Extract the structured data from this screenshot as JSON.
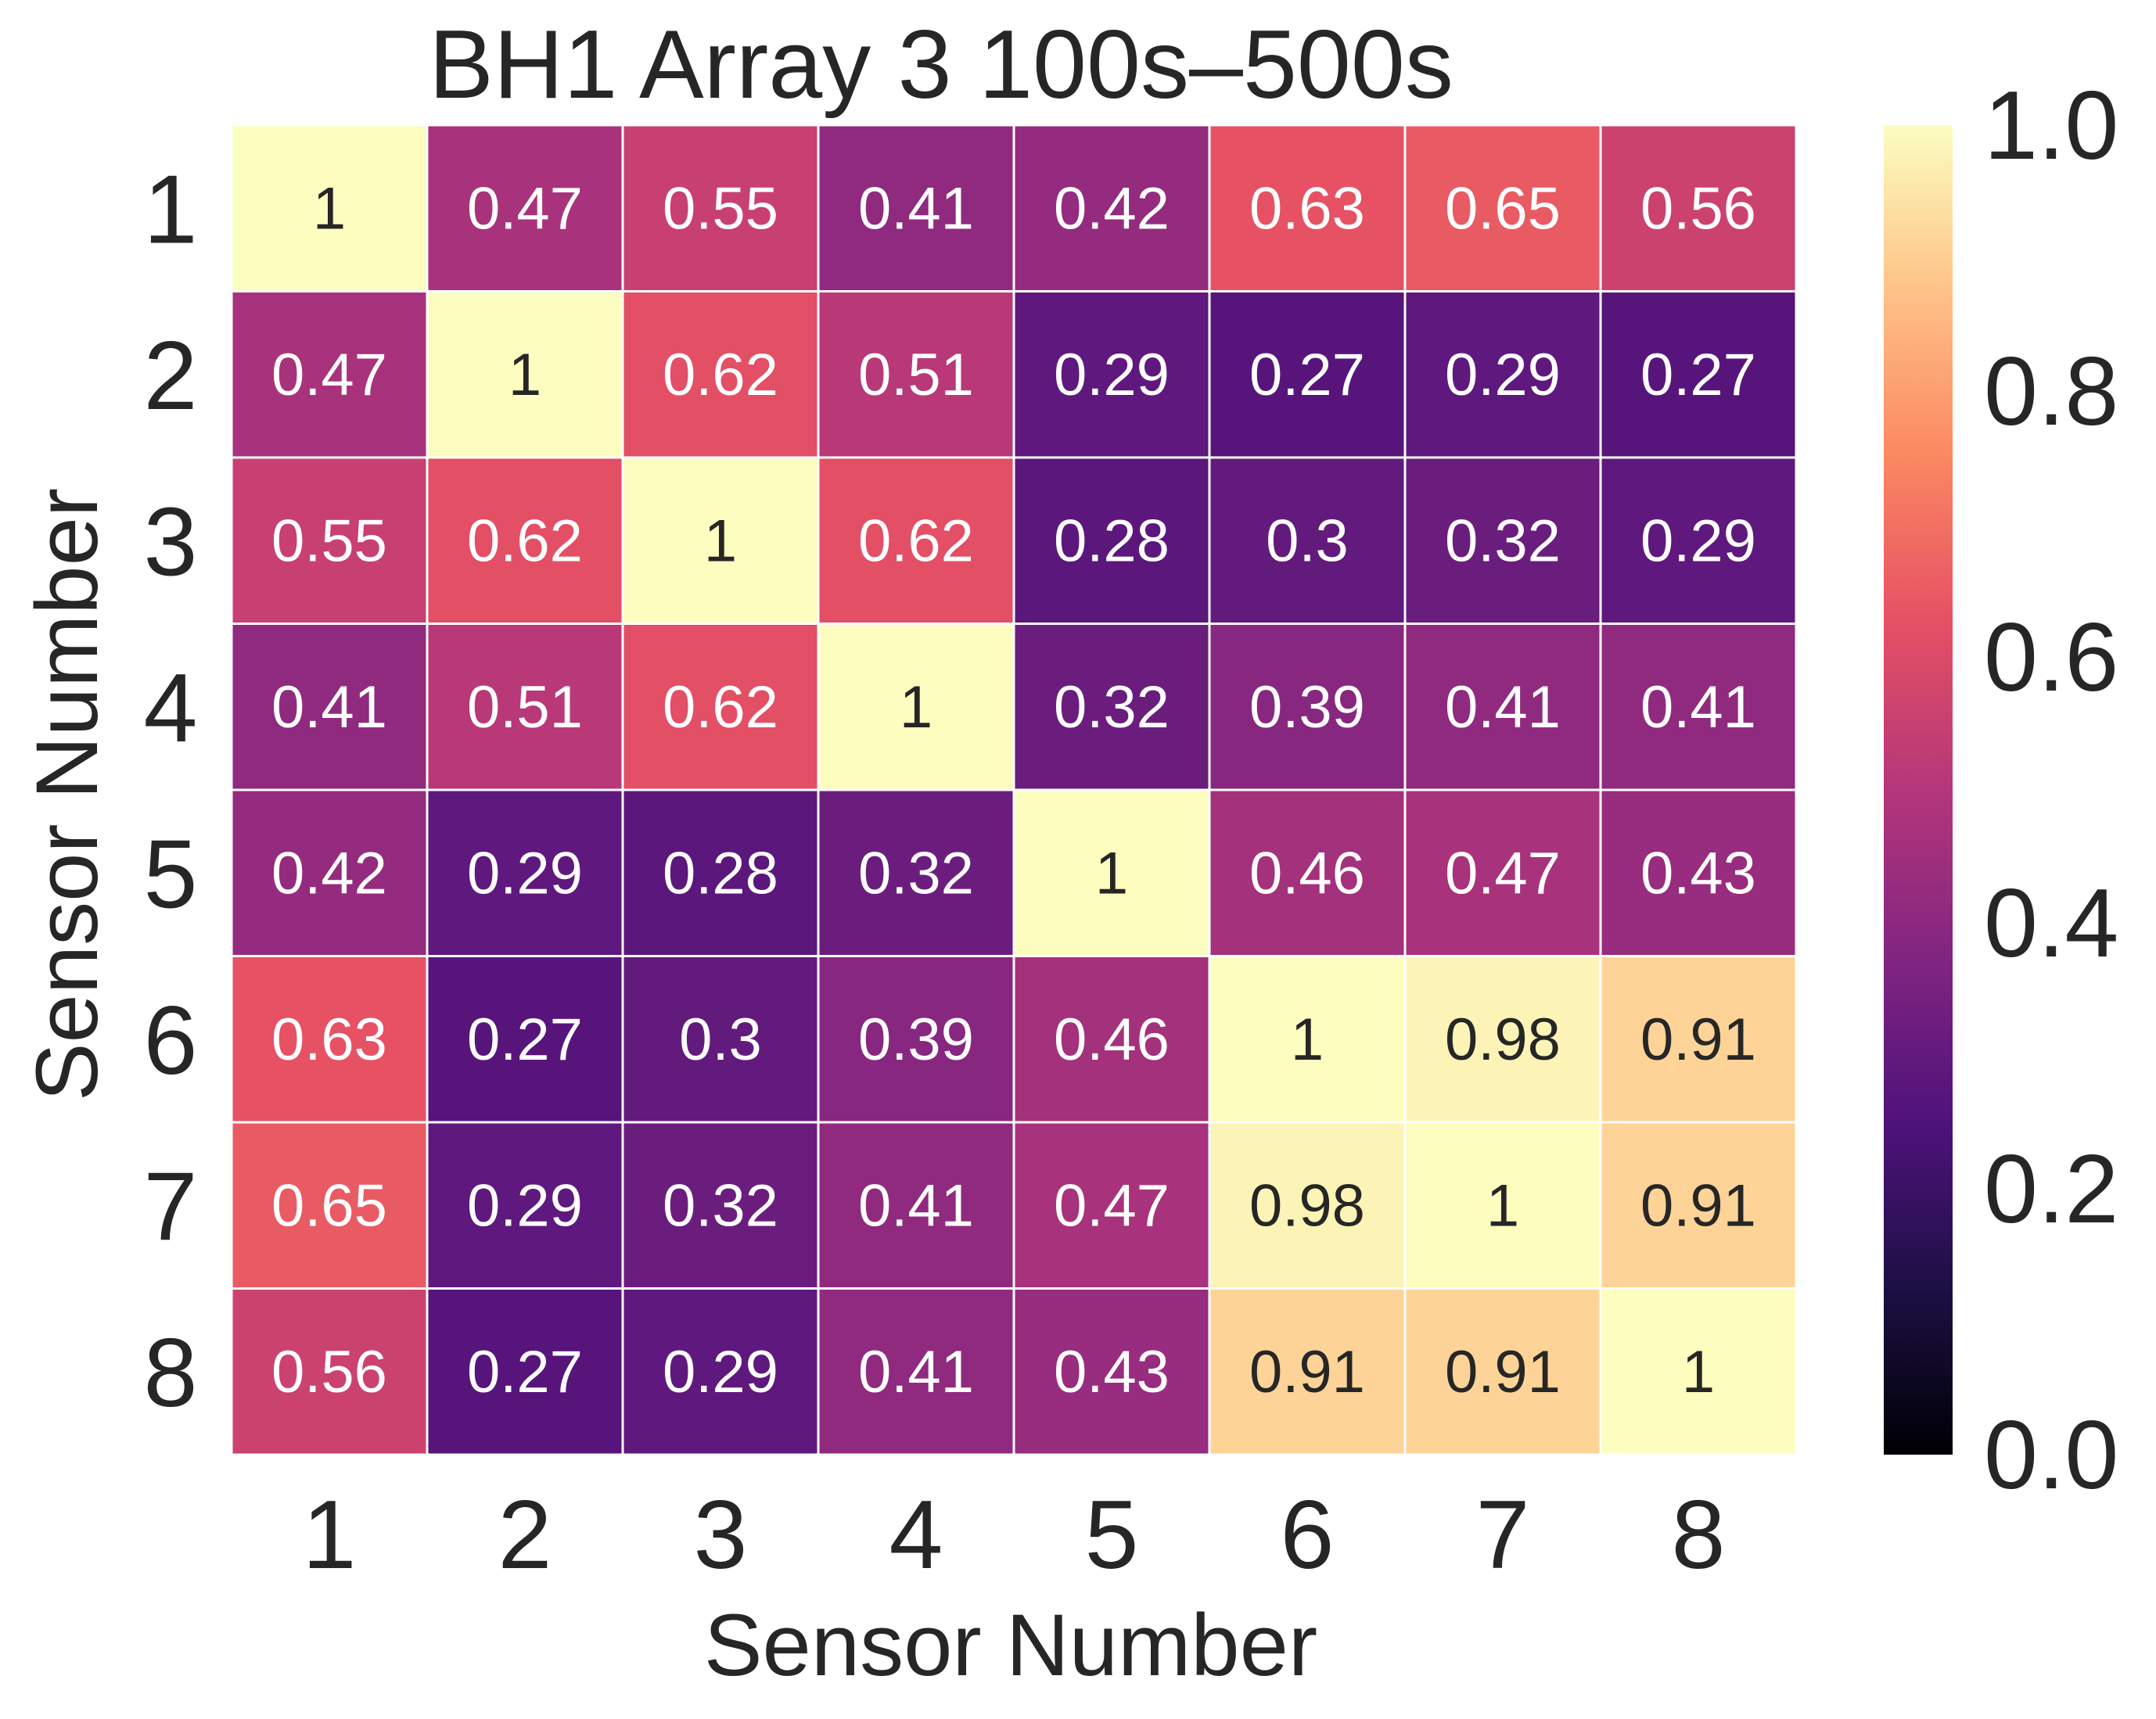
{
  "chart_data": {
    "type": "heatmap",
    "title": "BH1 Array 3 100s–500s",
    "xlabel": "Sensor Number",
    "ylabel": "Sensor Number",
    "x_categories": [
      "1",
      "2",
      "3",
      "4",
      "5",
      "6",
      "7",
      "8"
    ],
    "y_categories": [
      "1",
      "2",
      "3",
      "4",
      "5",
      "6",
      "7",
      "8"
    ],
    "values": [
      [
        1,
        0.47,
        0.55,
        0.41,
        0.42,
        0.63,
        0.65,
        0.56
      ],
      [
        0.47,
        1,
        0.62,
        0.51,
        0.29,
        0.27,
        0.29,
        0.27
      ],
      [
        0.55,
        0.62,
        1,
        0.62,
        0.28,
        0.3,
        0.32,
        0.29
      ],
      [
        0.41,
        0.51,
        0.62,
        1,
        0.32,
        0.39,
        0.41,
        0.41
      ],
      [
        0.42,
        0.29,
        0.28,
        0.32,
        1,
        0.46,
        0.47,
        0.43
      ],
      [
        0.63,
        0.27,
        0.3,
        0.39,
        0.46,
        1,
        0.98,
        0.91
      ],
      [
        0.65,
        0.29,
        0.32,
        0.41,
        0.47,
        0.98,
        1,
        0.91
      ],
      [
        0.56,
        0.27,
        0.29,
        0.41,
        0.43,
        0.91,
        0.91,
        1
      ]
    ],
    "colormap": "magma",
    "value_range": [
      0.0,
      1.0
    ],
    "colorbar_ticks": [
      "0.0",
      "0.2",
      "0.4",
      "0.6",
      "0.8",
      "1.0"
    ],
    "annotations": true,
    "colors": {
      "cell_border": "#ffffff",
      "text_dark": "#262626",
      "text_light": "#ffffff",
      "axis_text": "#262626"
    }
  }
}
